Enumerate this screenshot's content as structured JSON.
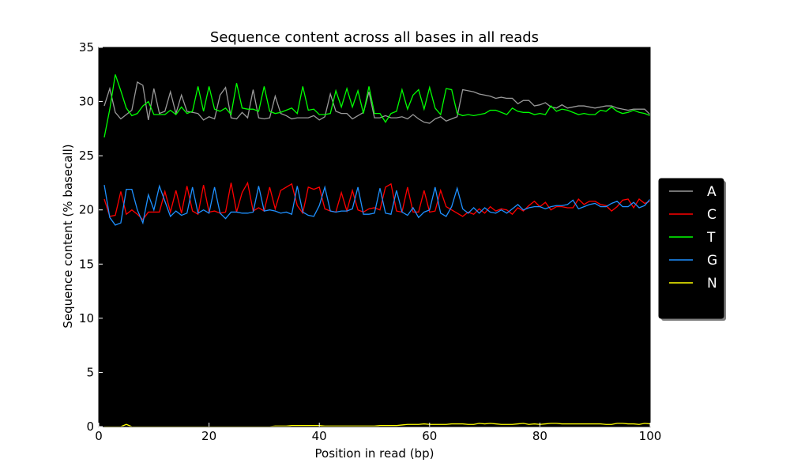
{
  "chart_data": {
    "type": "line",
    "title": "Sequence content across all bases in all reads",
    "xlabel": "Position in read (bp)",
    "ylabel": "Sequence content (% basecall)",
    "xlim": [
      0,
      100
    ],
    "ylim": [
      0,
      35
    ],
    "x_ticks": [
      0,
      20,
      40,
      60,
      80,
      100
    ],
    "y_ticks": [
      0,
      5,
      10,
      15,
      20,
      25,
      30,
      35
    ],
    "background": "#000000",
    "grid": false,
    "legend_position": "right",
    "x": [
      1,
      2,
      3,
      4,
      5,
      6,
      7,
      8,
      9,
      10,
      11,
      12,
      13,
      14,
      15,
      16,
      17,
      18,
      19,
      20,
      21,
      22,
      23,
      24,
      25,
      26,
      27,
      28,
      29,
      30,
      31,
      32,
      33,
      34,
      35,
      36,
      37,
      38,
      39,
      40,
      41,
      42,
      43,
      44,
      45,
      46,
      47,
      48,
      49,
      50,
      51,
      52,
      53,
      54,
      55,
      56,
      57,
      58,
      59,
      60,
      61,
      62,
      63,
      64,
      65,
      66,
      67,
      68,
      69,
      70,
      71,
      72,
      73,
      74,
      75,
      76,
      77,
      78,
      79,
      80,
      81,
      82,
      83,
      84,
      85,
      86,
      87,
      88,
      89,
      90,
      91,
      92,
      93,
      94,
      95,
      96,
      97,
      98,
      99,
      100
    ],
    "series": [
      {
        "name": "A",
        "color": "#999999",
        "values": [
          29.6,
          31.2,
          29.0,
          28.4,
          28.8,
          29.2,
          31.8,
          31.5,
          28.3,
          31.2,
          28.9,
          29.1,
          30.9,
          28.9,
          30.6,
          29.1,
          29.0,
          28.9,
          28.3,
          28.6,
          28.4,
          30.6,
          31.3,
          28.5,
          28.4,
          29.0,
          28.5,
          31.1,
          28.5,
          28.4,
          28.5,
          30.5,
          28.9,
          28.7,
          28.4,
          28.5,
          28.5,
          28.5,
          28.7,
          28.3,
          28.6,
          30.7,
          29.1,
          28.9,
          28.9,
          28.4,
          28.7,
          29.0,
          30.9,
          28.5,
          28.5,
          28.7,
          28.5,
          28.5,
          28.6,
          28.4,
          28.8,
          28.4,
          28.1,
          28.0,
          28.4,
          28.6,
          28.2,
          28.4,
          28.6,
          31.1,
          31.0,
          30.9,
          30.7,
          30.6,
          30.5,
          30.3,
          30.4,
          30.3,
          30.3,
          29.8,
          30.1,
          30.1,
          29.6,
          29.7,
          29.9,
          29.5,
          29.4,
          29.7,
          29.4,
          29.5,
          29.6,
          29.6,
          29.5,
          29.4,
          29.5,
          29.6,
          29.6,
          29.4,
          29.3,
          29.2,
          29.3,
          29.3,
          29.3,
          28.8
        ]
      },
      {
        "name": "C",
        "color": "#ff0000",
        "values": [
          21.0,
          19.4,
          19.5,
          21.7,
          19.6,
          20.0,
          19.6,
          19.1,
          19.8,
          19.8,
          19.8,
          21.7,
          19.8,
          21.8,
          19.7,
          22.2,
          19.9,
          19.6,
          22.3,
          19.8,
          19.9,
          19.7,
          19.8,
          22.5,
          19.8,
          21.6,
          22.5,
          19.9,
          20.2,
          19.9,
          22.1,
          20.1,
          21.8,
          22.1,
          22.4,
          20.4,
          19.7,
          22.1,
          21.9,
          22.1,
          20.1,
          19.9,
          19.8,
          21.6,
          19.9,
          21.8,
          20.0,
          19.8,
          20.1,
          20.2,
          20.0,
          22.1,
          22.4,
          19.9,
          19.8,
          22.1,
          19.8,
          19.8,
          21.8,
          19.8,
          19.9,
          21.8,
          20.3,
          20.0,
          19.7,
          19.4,
          19.8,
          19.6,
          20.1,
          19.7,
          20.3,
          19.9,
          20.1,
          20.0,
          19.6,
          20.2,
          19.9,
          20.4,
          20.8,
          20.3,
          20.7,
          20.0,
          20.3,
          20.3,
          20.2,
          20.2,
          21.0,
          20.5,
          20.8,
          20.8,
          20.5,
          20.4,
          19.9,
          20.3,
          20.9,
          21.0,
          20.2,
          21.0,
          20.6,
          20.8
        ]
      },
      {
        "name": "T",
        "color": "#00ff00",
        "values": [
          26.7,
          29.3,
          32.5,
          31.0,
          29.4,
          28.7,
          28.9,
          29.6,
          30.0,
          28.8,
          28.8,
          28.8,
          29.2,
          28.8,
          29.5,
          28.9,
          29.1,
          31.4,
          29.1,
          31.4,
          29.3,
          29.1,
          29.4,
          28.8,
          31.7,
          29.4,
          29.3,
          29.3,
          29.1,
          31.4,
          29.1,
          28.9,
          29.0,
          29.2,
          29.4,
          28.9,
          31.4,
          29.2,
          29.3,
          28.8,
          28.8,
          28.9,
          31.0,
          29.5,
          31.2,
          29.5,
          31.0,
          28.9,
          31.4,
          28.9,
          28.9,
          28.1,
          28.9,
          29.1,
          31.1,
          29.3,
          30.6,
          31.1,
          29.3,
          31.3,
          29.4,
          28.8,
          31.2,
          31.1,
          28.9,
          28.7,
          28.8,
          28.7,
          28.8,
          28.9,
          29.2,
          29.2,
          29.0,
          28.8,
          29.4,
          29.1,
          29.0,
          29.0,
          28.8,
          28.9,
          28.8,
          29.6,
          29.1,
          29.3,
          29.2,
          29.0,
          28.8,
          28.9,
          28.8,
          28.8,
          29.2,
          29.1,
          29.5,
          29.1,
          28.9,
          29.0,
          29.2,
          29.0,
          28.9,
          28.7
        ]
      },
      {
        "name": "G",
        "color": "#1e90ff",
        "values": [
          22.3,
          19.3,
          18.6,
          18.8,
          21.9,
          21.9,
          20.0,
          18.8,
          21.4,
          20.0,
          22.2,
          20.8,
          19.4,
          19.9,
          19.5,
          19.7,
          22.1,
          19.7,
          20.0,
          19.7,
          22.1,
          19.7,
          19.2,
          19.8,
          19.8,
          19.7,
          19.7,
          19.8,
          22.2,
          19.9,
          20.0,
          19.9,
          19.7,
          19.8,
          19.6,
          22.2,
          19.8,
          19.5,
          19.4,
          20.4,
          22.1,
          19.9,
          19.8,
          19.9,
          19.9,
          20.1,
          22.1,
          19.6,
          19.6,
          19.7,
          22.0,
          19.7,
          19.6,
          21.8,
          19.8,
          19.5,
          20.2,
          19.3,
          19.8,
          20.0,
          22.1,
          19.7,
          19.4,
          20.3,
          22.0,
          20.1,
          19.7,
          20.2,
          19.7,
          20.2,
          19.8,
          19.7,
          20.0,
          19.7,
          20.1,
          20.5,
          20.0,
          20.2,
          20.3,
          20.3,
          20.1,
          20.3,
          20.4,
          20.4,
          20.5,
          20.9,
          20.1,
          20.3,
          20.5,
          20.6,
          20.3,
          20.3,
          20.6,
          20.8,
          20.3,
          20.3,
          20.7,
          20.2,
          20.4,
          21.0
        ]
      },
      {
        "name": "N",
        "color": "#ffff00",
        "values": [
          0.0,
          0.0,
          0.0,
          0.0,
          0.2,
          0.0,
          0.0,
          0.0,
          0.0,
          0.0,
          0.0,
          0.0,
          0.0,
          0.0,
          0.0,
          0.0,
          0.0,
          0.0,
          0.0,
          0.0,
          0.0,
          0.0,
          0.0,
          0.0,
          0.0,
          0.0,
          0.0,
          0.0,
          0.0,
          0.0,
          0.0,
          0.05,
          0.05,
          0.05,
          0.1,
          0.1,
          0.1,
          0.1,
          0.1,
          0.1,
          0.05,
          0.05,
          0.05,
          0.05,
          0.05,
          0.05,
          0.05,
          0.05,
          0.05,
          0.05,
          0.1,
          0.1,
          0.1,
          0.1,
          0.15,
          0.2,
          0.2,
          0.2,
          0.25,
          0.2,
          0.2,
          0.2,
          0.2,
          0.25,
          0.25,
          0.25,
          0.2,
          0.2,
          0.3,
          0.25,
          0.3,
          0.25,
          0.2,
          0.2,
          0.2,
          0.25,
          0.3,
          0.2,
          0.25,
          0.2,
          0.25,
          0.3,
          0.3,
          0.25,
          0.25,
          0.25,
          0.25,
          0.25,
          0.25,
          0.25,
          0.25,
          0.2,
          0.2,
          0.3,
          0.3,
          0.25,
          0.25,
          0.2,
          0.3,
          0.25
        ]
      }
    ]
  }
}
